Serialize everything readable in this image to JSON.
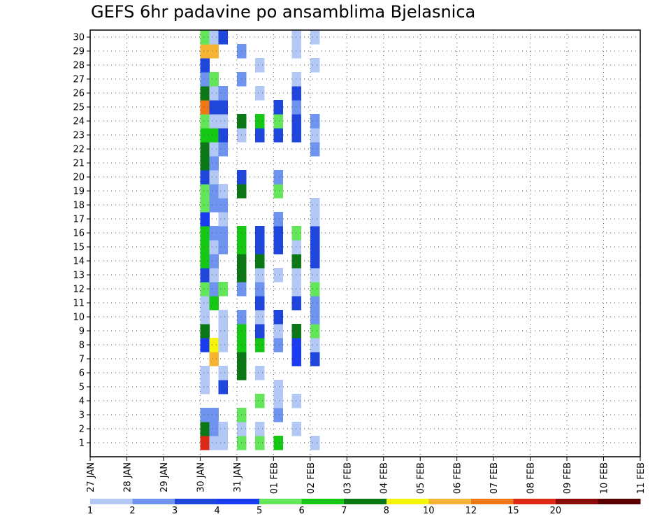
{
  "chart_data": {
    "type": "heatmap",
    "title": "GEFS 6hr padavine po ansamblima Bjelasnica",
    "xlabel": "",
    "ylabel": "",
    "members": [
      1,
      2,
      3,
      4,
      5,
      6,
      7,
      8,
      9,
      10,
      11,
      12,
      13,
      14,
      15,
      16,
      17,
      18,
      19,
      20,
      21,
      22,
      23,
      24,
      25,
      26,
      27,
      28,
      29,
      30
    ],
    "member_labels": [
      "1",
      "2",
      "3",
      "4",
      "5",
      "6",
      "7",
      "8",
      "9",
      "10",
      "11",
      "12",
      "13",
      "14",
      "15",
      "16",
      "17",
      "18",
      "19",
      "20",
      "21",
      "22",
      "23",
      "24",
      "25",
      "26",
      "27",
      "28",
      "29",
      "30"
    ],
    "date_labels": [
      "27 JAN",
      "28 JAN",
      "29 JAN",
      "30 JAN",
      "31 JAN",
      "01 FEB",
      "02 FEB",
      "03 FEB",
      "04 FEB",
      "05 FEB",
      "06 FEB",
      "07 FEB",
      "08 FEB",
      "09 FEB",
      "10 FEB",
      "11 FEB"
    ],
    "time_step_hours": 6,
    "legend_labels": [
      "1",
      "2",
      "3",
      "4",
      "5",
      "6",
      "7",
      "8",
      "10",
      "12",
      "15",
      "20"
    ],
    "levels": [
      1,
      2,
      3,
      4,
      5,
      6,
      7,
      8,
      10,
      12,
      15,
      20
    ],
    "colors": [
      "#b4c8f5",
      "#6e94f0",
      "#1e46dc",
      "#1a3cf0",
      "#64e65a",
      "#14c814",
      "#0a7814",
      "#f5f50a",
      "#f5b432",
      "#f07814",
      "#dc2814",
      "#8c0a0a",
      "#5a0000"
    ],
    "cells": [
      [
        1,
        12,
        10
      ],
      [
        2,
        12,
        6
      ],
      [
        3,
        12,
        1
      ],
      [
        5,
        12,
        0
      ],
      [
        6,
        12,
        0
      ],
      [
        8,
        12,
        3
      ],
      [
        9,
        12,
        6
      ],
      [
        10,
        12,
        0
      ],
      [
        11,
        12,
        0
      ],
      [
        12,
        12,
        4
      ],
      [
        13,
        12,
        2
      ],
      [
        14,
        12,
        5
      ],
      [
        15,
        12,
        5
      ],
      [
        16,
        12,
        5
      ],
      [
        17,
        12,
        3
      ],
      [
        18,
        12,
        4
      ],
      [
        19,
        12,
        4
      ],
      [
        20,
        12,
        2
      ],
      [
        21,
        12,
        6
      ],
      [
        22,
        12,
        6
      ],
      [
        23,
        12,
        5
      ],
      [
        24,
        12,
        4
      ],
      [
        25,
        12,
        9
      ],
      [
        26,
        12,
        6
      ],
      [
        27,
        12,
        1
      ],
      [
        28,
        12,
        2
      ],
      [
        29,
        12,
        8
      ],
      [
        30,
        12,
        4
      ],
      [
        1,
        13,
        0
      ],
      [
        2,
        13,
        1
      ],
      [
        3,
        13,
        1
      ],
      [
        7,
        13,
        8
      ],
      [
        8,
        13,
        7
      ],
      [
        11,
        13,
        5
      ],
      [
        12,
        13,
        1
      ],
      [
        13,
        13,
        0
      ],
      [
        14,
        13,
        1
      ],
      [
        15,
        13,
        0
      ],
      [
        16,
        13,
        1
      ],
      [
        18,
        13,
        1
      ],
      [
        19,
        13,
        1
      ],
      [
        20,
        13,
        0
      ],
      [
        21,
        13,
        1
      ],
      [
        22,
        13,
        0
      ],
      [
        23,
        13,
        5
      ],
      [
        24,
        13,
        0
      ],
      [
        25,
        13,
        2
      ],
      [
        26,
        13,
        0
      ],
      [
        27,
        13,
        4
      ],
      [
        29,
        13,
        8
      ],
      [
        30,
        13,
        0
      ],
      [
        1,
        14,
        0
      ],
      [
        2,
        14,
        0
      ],
      [
        5,
        14,
        2
      ],
      [
        6,
        14,
        0
      ],
      [
        8,
        14,
        0
      ],
      [
        9,
        14,
        0
      ],
      [
        10,
        14,
        0
      ],
      [
        12,
        14,
        4
      ],
      [
        15,
        14,
        1
      ],
      [
        16,
        14,
        1
      ],
      [
        17,
        14,
        0
      ],
      [
        18,
        14,
        1
      ],
      [
        19,
        14,
        0
      ],
      [
        22,
        14,
        1
      ],
      [
        23,
        14,
        2
      ],
      [
        24,
        14,
        0
      ],
      [
        25,
        14,
        2
      ],
      [
        26,
        14,
        1
      ],
      [
        30,
        14,
        2
      ],
      [
        1,
        16,
        4
      ],
      [
        2,
        16,
        0
      ],
      [
        3,
        16,
        4
      ],
      [
        6,
        16,
        6
      ],
      [
        7,
        16,
        6
      ],
      [
        8,
        16,
        5
      ],
      [
        9,
        16,
        5
      ],
      [
        10,
        16,
        1
      ],
      [
        12,
        16,
        1
      ],
      [
        13,
        16,
        6
      ],
      [
        14,
        16,
        6
      ],
      [
        15,
        16,
        5
      ],
      [
        16,
        16,
        5
      ],
      [
        19,
        16,
        6
      ],
      [
        20,
        16,
        2
      ],
      [
        23,
        16,
        0
      ],
      [
        24,
        16,
        6
      ],
      [
        27,
        16,
        1
      ],
      [
        29,
        16,
        1
      ],
      [
        1,
        18,
        4
      ],
      [
        2,
        18,
        0
      ],
      [
        4,
        18,
        4
      ],
      [
        6,
        18,
        0
      ],
      [
        8,
        18,
        5
      ],
      [
        9,
        18,
        2
      ],
      [
        10,
        18,
        0
      ],
      [
        11,
        18,
        2
      ],
      [
        12,
        18,
        1
      ],
      [
        13,
        18,
        0
      ],
      [
        14,
        18,
        6
      ],
      [
        15,
        18,
        2
      ],
      [
        16,
        18,
        2
      ],
      [
        23,
        18,
        2
      ],
      [
        24,
        18,
        5
      ],
      [
        26,
        18,
        0
      ],
      [
        28,
        18,
        0
      ],
      [
        1,
        20,
        5
      ],
      [
        3,
        20,
        1
      ],
      [
        4,
        20,
        0
      ],
      [
        5,
        20,
        0
      ],
      [
        8,
        20,
        1
      ],
      [
        9,
        20,
        0
      ],
      [
        10,
        20,
        2
      ],
      [
        13,
        20,
        0
      ],
      [
        15,
        20,
        2
      ],
      [
        16,
        20,
        2
      ],
      [
        17,
        20,
        1
      ],
      [
        19,
        20,
        4
      ],
      [
        20,
        20,
        1
      ],
      [
        23,
        20,
        2
      ],
      [
        24,
        20,
        4
      ],
      [
        25,
        20,
        2
      ],
      [
        2,
        22,
        0
      ],
      [
        4,
        22,
        0
      ],
      [
        7,
        22,
        3
      ],
      [
        8,
        22,
        3
      ],
      [
        9,
        22,
        6
      ],
      [
        11,
        22,
        2
      ],
      [
        12,
        22,
        0
      ],
      [
        13,
        22,
        0
      ],
      [
        14,
        22,
        6
      ],
      [
        15,
        22,
        0
      ],
      [
        16,
        22,
        4
      ],
      [
        23,
        22,
        2
      ],
      [
        24,
        22,
        2
      ],
      [
        25,
        22,
        1
      ],
      [
        26,
        22,
        2
      ],
      [
        27,
        22,
        0
      ],
      [
        29,
        22,
        0
      ],
      [
        30,
        22,
        0
      ],
      [
        1,
        24,
        0
      ],
      [
        7,
        24,
        2
      ],
      [
        8,
        24,
        0
      ],
      [
        9,
        24,
        4
      ],
      [
        10,
        24,
        1
      ],
      [
        11,
        24,
        1
      ],
      [
        12,
        24,
        4
      ],
      [
        13,
        24,
        0
      ],
      [
        14,
        24,
        2
      ],
      [
        15,
        24,
        2
      ],
      [
        16,
        24,
        2
      ],
      [
        17,
        24,
        0
      ],
      [
        18,
        24,
        0
      ],
      [
        22,
        24,
        1
      ],
      [
        23,
        24,
        0
      ],
      [
        24,
        24,
        1
      ],
      [
        28,
        24,
        0
      ],
      [
        30,
        24,
        0
      ]
    ]
  }
}
